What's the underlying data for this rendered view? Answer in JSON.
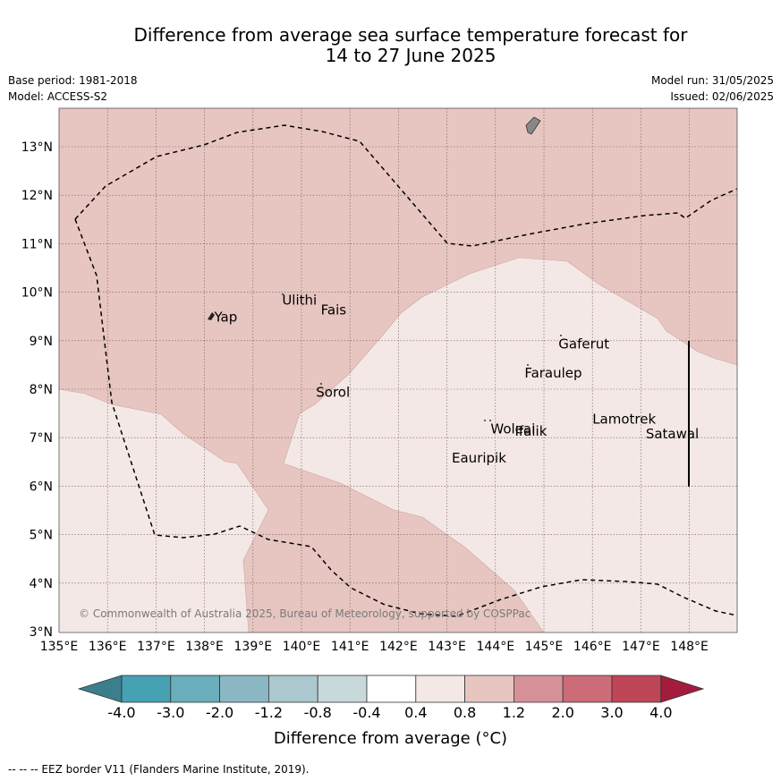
{
  "title_line1": "Difference from average sea surface temperature forecast for",
  "title_line2": "14 to 27 June 2025",
  "base_period": "Base period: 1981-2018",
  "model": "Model: ACCESS-S2",
  "model_run": "Model run: 31/05/2025",
  "issued": "Issued: 02/06/2025",
  "lon_ticks": [
    "135°E",
    "136°E",
    "137°E",
    "138°E",
    "139°E",
    "140°E",
    "141°E",
    "142°E",
    "143°E",
    "144°E",
    "145°E",
    "146°E",
    "147°E",
    "148°E"
  ],
  "lat_ticks": [
    "3°N",
    "4°N",
    "5°N",
    "6°N",
    "7°N",
    "8°N",
    "9°N",
    "10°N",
    "11°N",
    "12°N",
    "13°N"
  ],
  "places": [
    {
      "name": "Yap",
      "lon": 138.2,
      "lat": 9.5
    },
    {
      "name": "Ulithi",
      "lon": 139.6,
      "lat": 9.85
    },
    {
      "name": "Fais",
      "lon": 140.4,
      "lat": 9.65
    },
    {
      "name": "Sorol",
      "lon": 140.3,
      "lat": 7.95
    },
    {
      "name": "Gaferut",
      "lon": 145.3,
      "lat": 8.95
    },
    {
      "name": "Faraulep",
      "lon": 144.6,
      "lat": 8.35
    },
    {
      "name": "Woleai",
      "lon": 143.9,
      "lat": 7.2
    },
    {
      "name": "Ifalik",
      "lon": 144.4,
      "lat": 7.15
    },
    {
      "name": "Eauripik",
      "lon": 143.1,
      "lat": 6.6
    },
    {
      "name": "Lamotrek",
      "lon": 146.0,
      "lat": 7.4
    },
    {
      "name": "Satawal",
      "lon": 147.1,
      "lat": 7.1
    }
  ],
  "copyright": "© Commonwealth of Australia 2025, Bureau of Meteorology, supported by COSPPac",
  "colorbar": {
    "labels": [
      "-4.0",
      "-3.0",
      "-2.0",
      "-1.2",
      "-0.8",
      "-0.4",
      "0.4",
      "0.8",
      "1.2",
      "2.0",
      "3.0",
      "4.0"
    ],
    "colors": [
      "#3b7f8c",
      "#46a1b3",
      "#6aadbb",
      "#8ab7c3",
      "#aac8ce",
      "#c8d9dc",
      "#ffffff",
      "#f4e8e6",
      "#e7c6c1",
      "#d69098",
      "#cc6c78",
      "#bf4657",
      "#a31c3e"
    ],
    "title": "Difference from average (°C)"
  },
  "map_colors": {
    "band_0.4_0.8": "#f4e8e6",
    "band_0.8_1.2": "#e7c6c1"
  },
  "footnote": "--  --  -- EEZ border V11 (Flanders Marine Institute, 2019)."
}
